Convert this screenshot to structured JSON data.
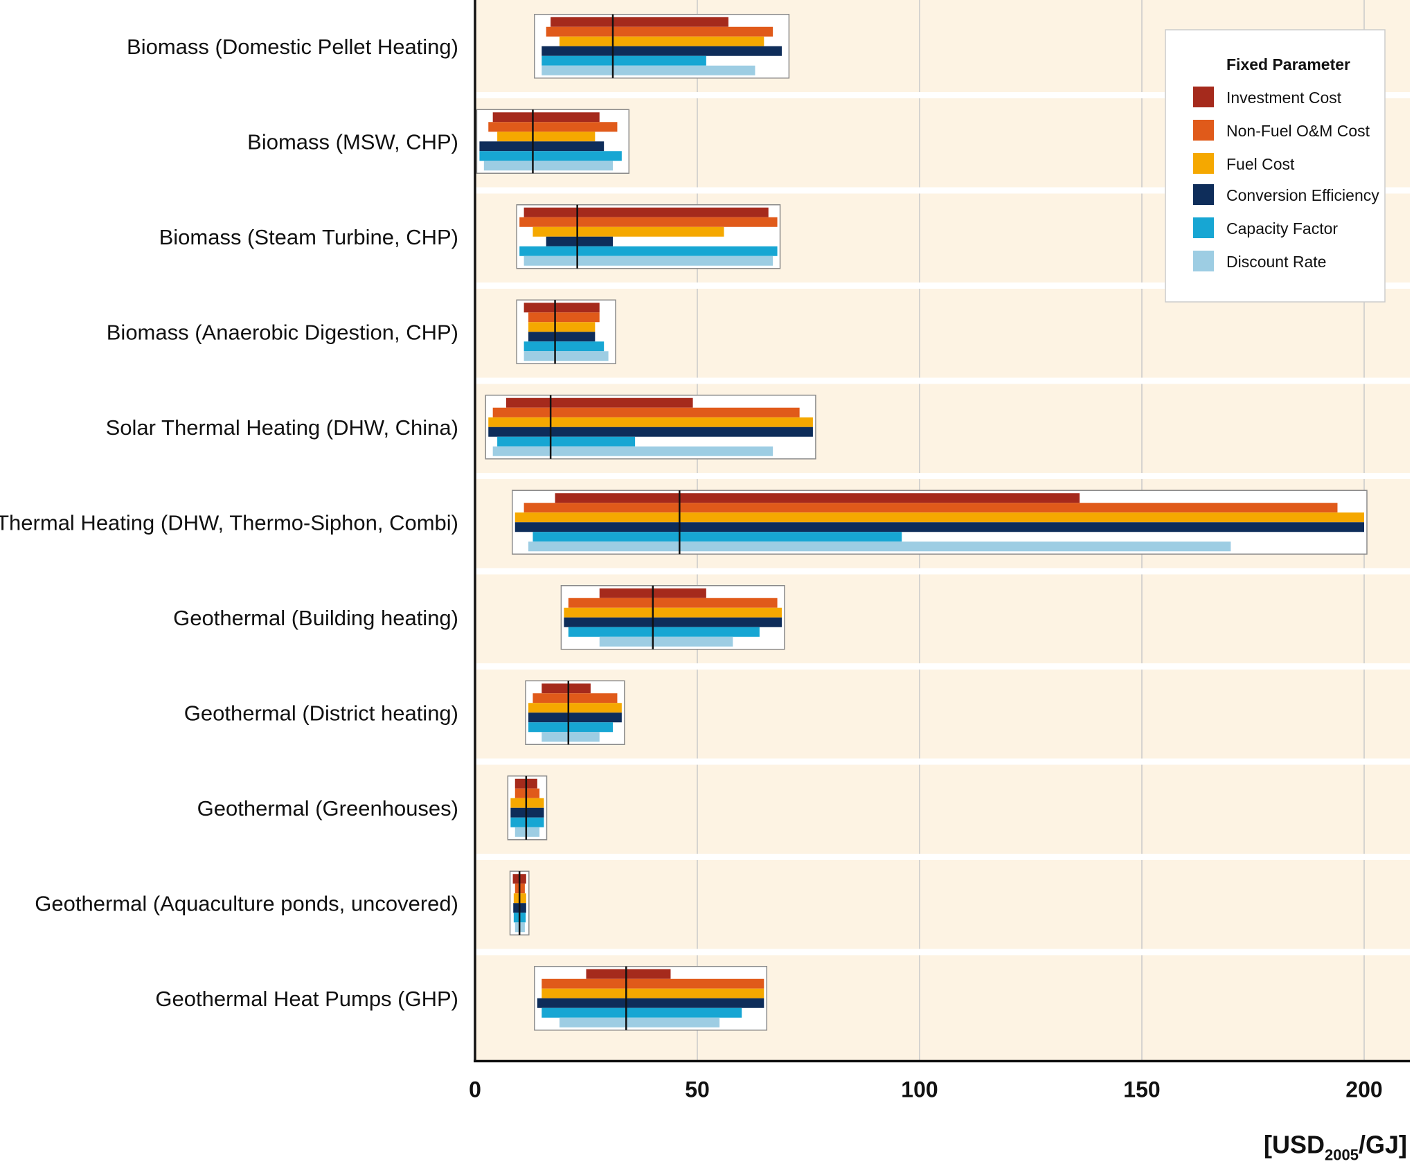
{
  "chart_data": {
    "type": "bar",
    "subtype": "tornado-sensitivity-range",
    "xlabel_parts": {
      "prefix": "[USD",
      "subscript": "2005",
      "suffix": "/GJ]"
    },
    "xlim": [
      0,
      210
    ],
    "xticks": [
      "0",
      "50",
      "100",
      "150",
      "200"
    ],
    "xtick_values": [
      0,
      50,
      100,
      150,
      200
    ],
    "grid": "vertical",
    "legend": {
      "title": "Fixed Parameter",
      "position": "top-right",
      "entries": [
        {
          "name": "Investment Cost",
          "color": "#a52a1c"
        },
        {
          "name": "Non-Fuel O&M Cost",
          "color": "#e05a1a"
        },
        {
          "name": "Fuel Cost",
          "color": "#f5a800"
        },
        {
          "name": "Conversion Efficiency",
          "color": "#0e2d5a"
        },
        {
          "name": "Capacity Factor",
          "color": "#17a6d3"
        },
        {
          "name": "Discount Rate",
          "color": "#9dcde3"
        }
      ]
    },
    "categories": [
      "Biomass (Domestic Pellet Heating)",
      "Biomass (MSW, CHP)",
      "Biomass (Steam Turbine, CHP)",
      "Biomass (Anaerobic Digestion, CHP)",
      "Solar Thermal Heating (DHW, China)",
      "Solar Thermal Heating (DHW, Thermo-Siphon, Combi)",
      "Geothermal (Building heating)",
      "Geothermal (District heating)",
      "Geothermal (Greenhouses)",
      "Geothermal (Aquaculture ponds, uncovered)",
      "Geothermal Heat Pumps (GHP)"
    ],
    "ranges": [
      {
        "min": 14,
        "max": 70,
        "median": 31,
        "series": [
          [
            17,
            57
          ],
          [
            16,
            67
          ],
          [
            19,
            65
          ],
          [
            15,
            69
          ],
          [
            15,
            52
          ],
          [
            15,
            63
          ]
        ]
      },
      {
        "min": 1,
        "max": 34,
        "median": 13,
        "series": [
          [
            4,
            28
          ],
          [
            3,
            32
          ],
          [
            5,
            27
          ],
          [
            1,
            29
          ],
          [
            1,
            33
          ],
          [
            2,
            31
          ]
        ]
      },
      {
        "min": 10,
        "max": 68,
        "median": 23,
        "series": [
          [
            11,
            66
          ],
          [
            10,
            68
          ],
          [
            13,
            56
          ],
          [
            16,
            31
          ],
          [
            10,
            68
          ],
          [
            11,
            67
          ]
        ]
      },
      {
        "min": 10,
        "max": 31,
        "median": 18,
        "series": [
          [
            11,
            28
          ],
          [
            12,
            28
          ],
          [
            12,
            27
          ],
          [
            12,
            27
          ],
          [
            11,
            29
          ],
          [
            11,
            30
          ]
        ]
      },
      {
        "min": 3,
        "max": 76,
        "median": 17,
        "series": [
          [
            7,
            49
          ],
          [
            4,
            73
          ],
          [
            3,
            76
          ],
          [
            3,
            76
          ],
          [
            5,
            36
          ],
          [
            4,
            67
          ]
        ]
      },
      {
        "min": 9,
        "max": 200,
        "median": 46,
        "series": [
          [
            18,
            136
          ],
          [
            11,
            194
          ],
          [
            9,
            200
          ],
          [
            9,
            200
          ],
          [
            13,
            96
          ],
          [
            12,
            170
          ]
        ]
      },
      {
        "min": 20,
        "max": 69,
        "median": 40,
        "series": [
          [
            28,
            52
          ],
          [
            21,
            68
          ],
          [
            20,
            69
          ],
          [
            20,
            69
          ],
          [
            21,
            64
          ],
          [
            28,
            58
          ]
        ]
      },
      {
        "min": 12,
        "max": 33,
        "median": 21,
        "series": [
          [
            15,
            26
          ],
          [
            13,
            32
          ],
          [
            12,
            33
          ],
          [
            12,
            33
          ],
          [
            12,
            31
          ],
          [
            15,
            28
          ]
        ]
      },
      {
        "min": 8,
        "max": 15.5,
        "median": 11.5,
        "series": [
          [
            9,
            14
          ],
          [
            9,
            14.5
          ],
          [
            8,
            15.5
          ],
          [
            8,
            15.5
          ],
          [
            8,
            15.5
          ],
          [
            9,
            14.5
          ]
        ]
      },
      {
        "min": 8.5,
        "max": 11.5,
        "median": 10,
        "series": [
          [
            8.5,
            11.5
          ],
          [
            9,
            11.2
          ],
          [
            8.7,
            11.5
          ],
          [
            8.6,
            11.5
          ],
          [
            8.7,
            11.4
          ],
          [
            9,
            11.2
          ]
        ]
      },
      {
        "min": 14,
        "max": 65,
        "median": 34,
        "series": [
          [
            25,
            44
          ],
          [
            15,
            65
          ],
          [
            15,
            65
          ],
          [
            14,
            65
          ],
          [
            15,
            60
          ],
          [
            19,
            55
          ]
        ]
      }
    ]
  }
}
